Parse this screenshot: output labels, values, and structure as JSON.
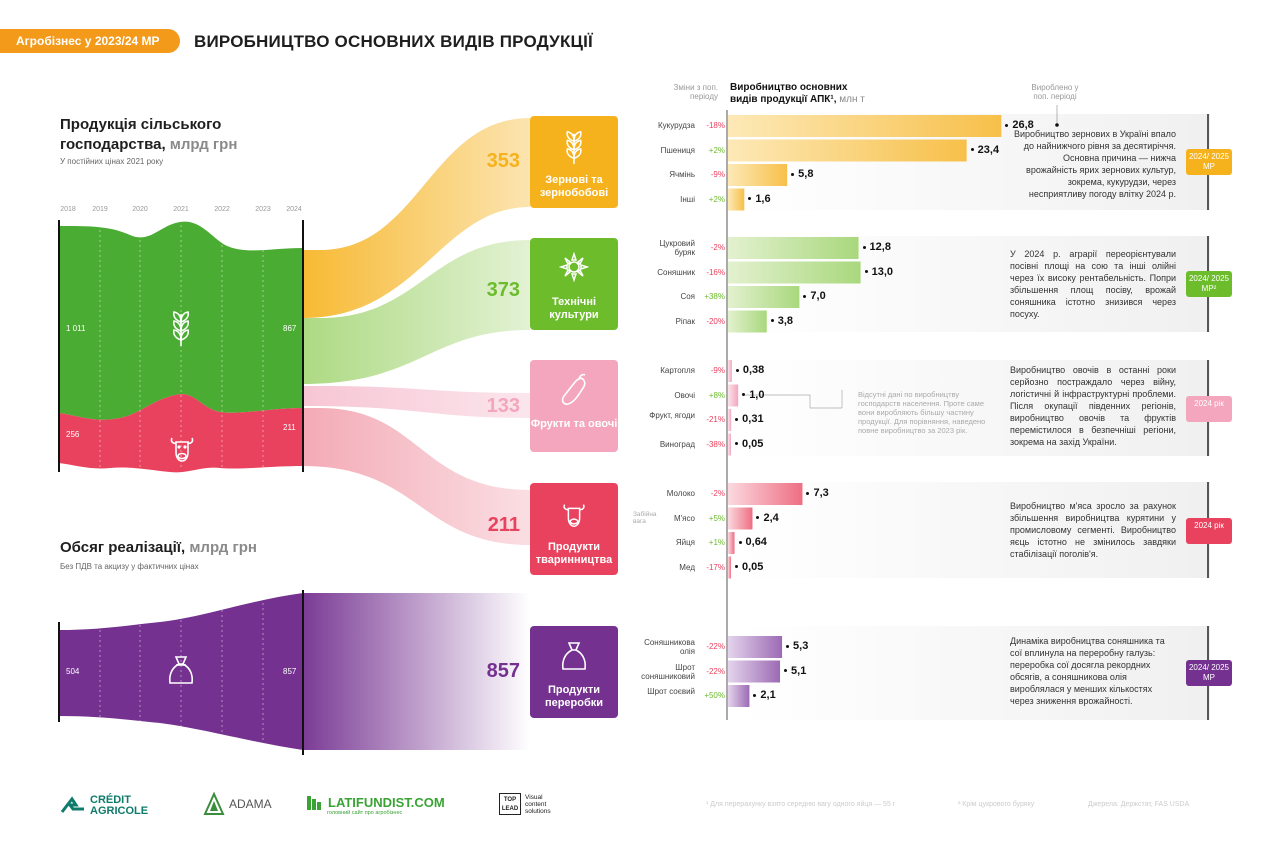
{
  "header": {
    "tag": "Агробізнес у 2023/24 МР",
    "title": "ВИРОБНИЦТВО ОСНОВНИХ ВИДІВ ПРОДУКЦІЇ"
  },
  "left": {
    "agri_title_1": "Продукція сільського",
    "agri_title_2": "господарства,",
    "agri_unit": " млрд грн",
    "agri_sub": "У постійних цінах 2021 року",
    "years": [
      "2018",
      "2019",
      "2020",
      "2021",
      "2022",
      "2023",
      "2024"
    ],
    "crop_start": "1 011",
    "crop_end": "867",
    "animal_start": "256",
    "animal_end": "211",
    "sales_title": "Обсяг реалізації,",
    "sales_unit": " млрд грн",
    "sales_sub": "Без ПДВ та акцизу у фактичних цінах",
    "sales_start": "504",
    "sales_end": "857"
  },
  "categories": [
    {
      "value": "353",
      "label": "Зернові та зернобобові",
      "color": "#f6b21d",
      "icon": "wheat-icon"
    },
    {
      "value": "373",
      "label": "Технічні культури",
      "color": "#6cbc2c",
      "icon": "sunflower-icon"
    },
    {
      "value": "133",
      "label": "Фрукти та овочі",
      "color": "#f3a6bd",
      "icon": "eggplant-icon"
    },
    {
      "value": "211",
      "label": "Продукти тваринництва",
      "color": "#e9425e",
      "icon": "cow-icon"
    },
    {
      "value": "857",
      "label": "Продукти переробки",
      "color": "#743190",
      "icon": "sack-icon"
    }
  ],
  "chart_header": {
    "change_label": "Зміни з поп. періоду",
    "title_line1": "Виробництво основних",
    "title_line2": "видів продукції АПК¹,",
    "title_unit": " млн т",
    "prev_label": "Вироблено у поп. періоді"
  },
  "chart_data": {
    "type": "bar",
    "title": "Виробництво основних видів продукції АПК¹, млн т",
    "xlabel": "",
    "ylabel": "млн т",
    "series": [
      {
        "group": "Зернові та зернобобові",
        "period": "2024/ 2025 МР",
        "items": [
          {
            "label": "Кукурудза",
            "change": "-18%",
            "value": 26.8,
            "display": "26,8"
          },
          {
            "label": "Пшениця",
            "change": "+2%",
            "value": 23.4,
            "display": "23,4"
          },
          {
            "label": "Ячмінь",
            "change": "-9%",
            "value": 5.8,
            "display": "5,8"
          },
          {
            "label": "Інші",
            "change": "+2%",
            "value": 1.6,
            "display": "1,6"
          }
        ]
      },
      {
        "group": "Технічні культури",
        "period": "2024/ 2025 МР²",
        "items": [
          {
            "label": "Цукровий буряк",
            "change": "-2%",
            "value": 12.8,
            "display": "12,8"
          },
          {
            "label": "Соняшник",
            "change": "-16%",
            "value": 13.0,
            "display": "13,0"
          },
          {
            "label": "Соя",
            "change": "+38%",
            "value": 7.0,
            "display": "7,0"
          },
          {
            "label": "Ріпак",
            "change": "-20%",
            "value": 3.8,
            "display": "3,8"
          }
        ]
      },
      {
        "group": "Фрукти та овочі",
        "period": "2024 рік",
        "items": [
          {
            "label": "Картопля",
            "change": "-9%",
            "value": 0.38,
            "display": "0,38"
          },
          {
            "label": "Овочі",
            "change": "+8%",
            "value": 1.0,
            "display": "1,0"
          },
          {
            "label": "Фрукт, ягоди",
            "change": "-21%",
            "value": 0.31,
            "display": "0,31"
          },
          {
            "label": "Виноград",
            "change": "-38%",
            "value": 0.05,
            "display": "0,05"
          }
        ]
      },
      {
        "group": "Продукти тваринництва",
        "period": "2024 рік",
        "items": [
          {
            "label": "Молоко",
            "change": "-2%",
            "value": 7.3,
            "display": "7,3"
          },
          {
            "label": "М'ясо",
            "change": "+5%",
            "value": 2.4,
            "display": "2,4"
          },
          {
            "label": "Яйця",
            "change": "+1%",
            "value": 0.64,
            "display": "0,64"
          },
          {
            "label": "Мед",
            "change": "-17%",
            "value": 0.05,
            "display": "0,05"
          }
        ]
      },
      {
        "group": "Продукти переробки",
        "period": "2024/ 2025 МР",
        "items": [
          {
            "label": "Соняшникова олія",
            "change": "-22%",
            "value": 5.3,
            "display": "5,3"
          },
          {
            "label": "Шрот соняшниковий",
            "change": "-22%",
            "value": 5.1,
            "display": "5,1"
          },
          {
            "label": "Шрот соєвий",
            "change": "+50%",
            "value": 2.1,
            "display": "2,1"
          }
        ]
      }
    ]
  },
  "meat_note": "Забійна вага",
  "descriptions": [
    "Виробництво зернових в Україні впало до найнижчого рівня за десятиріччя. Основна причина — нижча врожайність ярих зернових культур, зокрема, кукурудзи, через несприятливу погоду влітку 2024 р.",
    "У 2024 р. аграрії переорієнтували посівні площі на сою та інші олійні через їх високу рентабельність. Попри збільшення площ посіву, врожай соняшника істотно знизився через посуху.",
    "Виробництво овочів в останні роки серйозно постраждало через війну, логістичні й інфраструктурні проблеми. Після окупації південних регіонів, виробництво овочів та фруктів перемістилося в безпечніші регіони, зокрема на захід України.",
    "Виробництво м'яса зросло за рахунок збільшення виробництва курятини у промисловому сегменті. Виробництво яєць істотно не змінилось завдяки стабілізації поголів'я.",
    "Динаміка виробництва соняшника та сої вплинула на переробну галузь: переробка сої досягла рекордних обсягів, а соняшникова олія вироблялася у менших кількостях через зниження врожайності."
  ],
  "side_note": "Відсутні дані по виробництву господарств населення. Проте саме вони виробляють більшу частину продукції. Для порівняння, наведено повне виробництво за 2023 рік.",
  "footer": {
    "logo1": "CRÉDIT AGRICOLE",
    "logo2": "ADAMA",
    "logo3": "LATIFUNDIST.COM",
    "logo3_sub": "головний сайт про агробізнес",
    "logo4a": "TOP LEAD",
    "logo4b": "Visual content solutions",
    "note1": "¹ Для перерахунку взято середню вагу одного яйця — 55 г",
    "note2": "² Крім цукрового буряку",
    "note3": "Джерела: Держстат, FAS USDA"
  },
  "colors": {
    "orange": "#f6b21d",
    "green": "#6cbc2c",
    "pink": "#f3a6bd",
    "red": "#e9425e",
    "purple": "#743190"
  }
}
